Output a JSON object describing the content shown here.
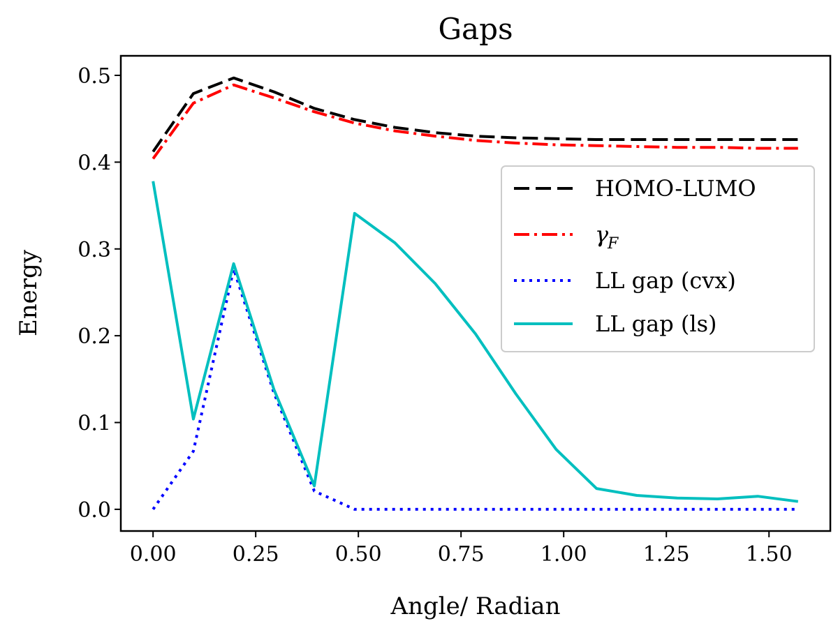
{
  "chart_data": {
    "type": "line",
    "title": "Gaps",
    "xlabel": "Angle/ Radian",
    "ylabel": "Energy",
    "xlim": [
      -0.0785,
      1.6493
    ],
    "ylim": [
      -0.025,
      0.5225
    ],
    "xticks": [
      {
        "value": 0.0,
        "label": "0.00"
      },
      {
        "value": 0.25,
        "label": "0.25"
      },
      {
        "value": 0.5,
        "label": "0.50"
      },
      {
        "value": 0.75,
        "label": "0.75"
      },
      {
        "value": 1.0,
        "label": "1.00"
      },
      {
        "value": 1.25,
        "label": "1.25"
      },
      {
        "value": 1.5,
        "label": "1.50"
      }
    ],
    "yticks": [
      {
        "value": 0.0,
        "label": "0.0"
      },
      {
        "value": 0.1,
        "label": "0.1"
      },
      {
        "value": 0.2,
        "label": "0.2"
      },
      {
        "value": 0.3,
        "label": "0.3"
      },
      {
        "value": 0.4,
        "label": "0.4"
      },
      {
        "value": 0.5,
        "label": "0.5"
      }
    ],
    "x": [
      0.0,
      0.0982,
      0.1963,
      0.2945,
      0.3927,
      0.4909,
      0.589,
      0.6872,
      0.7854,
      0.8836,
      0.9817,
      1.0799,
      1.1781,
      1.2763,
      1.3744,
      1.4726,
      1.5708
    ],
    "series": [
      {
        "name": "HOMO-LUMO",
        "color": "#000000",
        "style": "dashed",
        "values": [
          0.412,
          0.479,
          0.497,
          0.481,
          0.462,
          0.449,
          0.44,
          0.434,
          0.43,
          0.428,
          0.427,
          0.426,
          0.426,
          0.426,
          0.426,
          0.426,
          0.426
        ]
      },
      {
        "name": "γ",
        "name_subscript": "F",
        "color": "#ff0000",
        "style": "dashdot",
        "values": [
          0.404,
          0.468,
          0.489,
          0.474,
          0.458,
          0.445,
          0.436,
          0.43,
          0.425,
          0.422,
          0.42,
          0.419,
          0.418,
          0.417,
          0.417,
          0.416,
          0.416
        ]
      },
      {
        "name": "LL gap (cvx)",
        "color": "#0000ff",
        "style": "dotted",
        "values": [
          0.0,
          0.067,
          0.277,
          0.134,
          0.021,
          0.0,
          0.0,
          0.0,
          0.0,
          0.0,
          0.0,
          0.0,
          0.0,
          0.0,
          0.0,
          0.0,
          0.0
        ]
      },
      {
        "name": "LL gap (ls)",
        "color": "#00bfbf",
        "style": "solid",
        "values": [
          0.378,
          0.104,
          0.283,
          0.138,
          0.027,
          0.341,
          0.307,
          0.26,
          0.202,
          0.133,
          0.069,
          0.024,
          0.016,
          0.013,
          0.012,
          0.015,
          0.009
        ]
      }
    ],
    "legend_position": "center-right"
  }
}
